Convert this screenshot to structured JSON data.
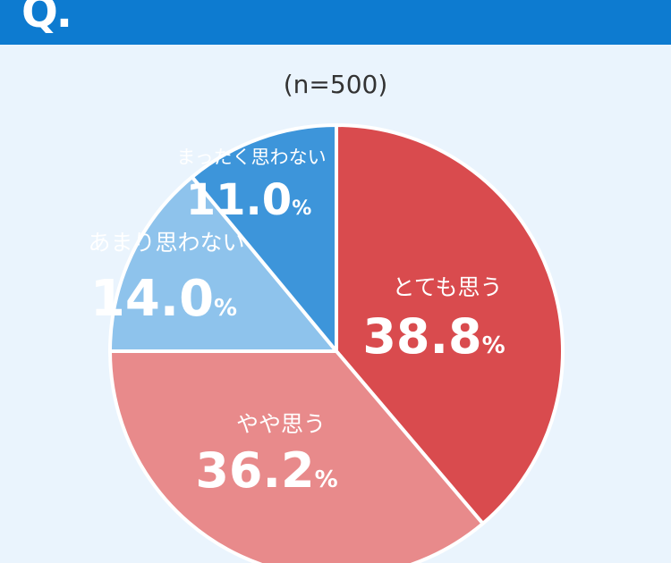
{
  "header": {
    "q_mark": "Q.",
    "question": "　　　　　　　　　　　　　"
  },
  "sample_size": "(n=500)",
  "chart_data": {
    "type": "pie",
    "slices": [
      {
        "label": "とても思う",
        "value": 38.8,
        "display": "38.8",
        "unit": "%",
        "color": "#d94b4e",
        "text_color": "#ffffff",
        "stroke": "#ffffff"
      },
      {
        "label": "やや思う",
        "value": 36.2,
        "display": "36.2",
        "unit": "%",
        "color": "#e88a8b",
        "text_color": "#ffffff",
        "stroke": "#ffffff"
      },
      {
        "label": "あまり思わない",
        "value": 14.0,
        "display": "14.0",
        "unit": "%",
        "color": "#8ec3ec",
        "text_color": "#ffffff",
        "stroke": "#ffffff"
      },
      {
        "label": "まったく思わない",
        "value": 11.0,
        "display": "11.0",
        "unit": "%",
        "color": "#3d95da",
        "text_color": "#ffffff",
        "stroke": "#ffffff"
      }
    ]
  }
}
